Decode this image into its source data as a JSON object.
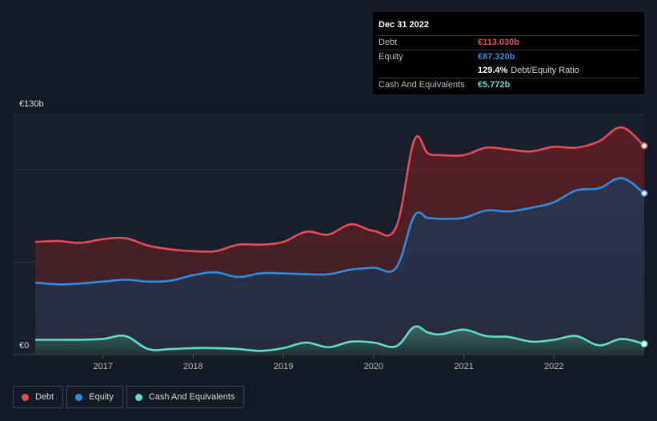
{
  "chart_data": {
    "type": "area",
    "x_unit": "year",
    "y_unit": "€ billions",
    "ylim": [
      0,
      130
    ],
    "y_tick_labels": [
      {
        "value": 130,
        "label": "€130b"
      },
      {
        "value": 0,
        "label": "€0"
      }
    ],
    "x_ticks": [
      2017,
      2018,
      2019,
      2020,
      2021,
      2022
    ],
    "grid": true,
    "legend_position": "bottom-left",
    "series": [
      {
        "name": "Debt",
        "color": "#e64c55",
        "points": [
          [
            2016.25,
            61
          ],
          [
            2016.5,
            61.5
          ],
          [
            2016.75,
            60.5
          ],
          [
            2017.0,
            62.5
          ],
          [
            2017.25,
            63
          ],
          [
            2017.5,
            59
          ],
          [
            2017.75,
            57
          ],
          [
            2018.0,
            56
          ],
          [
            2018.25,
            56
          ],
          [
            2018.5,
            59.5
          ],
          [
            2018.75,
            59.5
          ],
          [
            2019.0,
            61
          ],
          [
            2019.25,
            66.5
          ],
          [
            2019.5,
            65
          ],
          [
            2019.75,
            70.5
          ],
          [
            2020.0,
            67
          ],
          [
            2020.25,
            69
          ],
          [
            2020.45,
            116
          ],
          [
            2020.6,
            109
          ],
          [
            2020.75,
            108
          ],
          [
            2021.0,
            108
          ],
          [
            2021.25,
            112
          ],
          [
            2021.5,
            111
          ],
          [
            2021.75,
            110
          ],
          [
            2022.0,
            112.5
          ],
          [
            2022.25,
            112
          ],
          [
            2022.5,
            115.5
          ],
          [
            2022.75,
            123
          ],
          [
            2023.0,
            113.03
          ]
        ]
      },
      {
        "name": "Equity",
        "color": "#2e8de0",
        "points": [
          [
            2016.25,
            39
          ],
          [
            2016.5,
            38
          ],
          [
            2016.75,
            38.5
          ],
          [
            2017.0,
            39.5
          ],
          [
            2017.25,
            40.5
          ],
          [
            2017.5,
            39.5
          ],
          [
            2017.75,
            40
          ],
          [
            2018.0,
            43
          ],
          [
            2018.25,
            44.5
          ],
          [
            2018.5,
            42
          ],
          [
            2018.75,
            44
          ],
          [
            2019.0,
            44
          ],
          [
            2019.25,
            43.5
          ],
          [
            2019.5,
            43.5
          ],
          [
            2019.75,
            46
          ],
          [
            2020.0,
            47
          ],
          [
            2020.25,
            47
          ],
          [
            2020.45,
            75
          ],
          [
            2020.6,
            74
          ],
          [
            2020.75,
            73.5
          ],
          [
            2021.0,
            74
          ],
          [
            2021.25,
            78
          ],
          [
            2021.5,
            77.5
          ],
          [
            2021.75,
            79.5
          ],
          [
            2022.0,
            82.5
          ],
          [
            2022.25,
            89
          ],
          [
            2022.5,
            90
          ],
          [
            2022.75,
            95.5
          ],
          [
            2023.0,
            87.32
          ]
        ]
      },
      {
        "name": "Cash And Equivalents",
        "color": "#62dbc9",
        "points": [
          [
            2016.25,
            8
          ],
          [
            2016.5,
            8
          ],
          [
            2016.75,
            8
          ],
          [
            2017.0,
            8.5
          ],
          [
            2017.25,
            10
          ],
          [
            2017.5,
            3
          ],
          [
            2017.75,
            3
          ],
          [
            2018.0,
            3.5
          ],
          [
            2018.25,
            3.5
          ],
          [
            2018.5,
            3
          ],
          [
            2018.75,
            2
          ],
          [
            2019.0,
            3.5
          ],
          [
            2019.25,
            6.5
          ],
          [
            2019.5,
            4
          ],
          [
            2019.75,
            7
          ],
          [
            2020.0,
            6.5
          ],
          [
            2020.25,
            4.5
          ],
          [
            2020.45,
            15
          ],
          [
            2020.6,
            12
          ],
          [
            2020.75,
            11
          ],
          [
            2021.0,
            13.5
          ],
          [
            2021.25,
            10
          ],
          [
            2021.5,
            9.5
          ],
          [
            2021.75,
            7
          ],
          [
            2022.0,
            8
          ],
          [
            2022.25,
            10
          ],
          [
            2022.5,
            5
          ],
          [
            2022.75,
            8.5
          ],
          [
            2023.0,
            5.772
          ]
        ]
      }
    ]
  },
  "tooltip": {
    "date": "Dec 31 2022",
    "rows": [
      {
        "label": "Debt",
        "value": "€113.030b",
        "color": "#e64c55",
        "desc": ""
      },
      {
        "label": "Equity",
        "value": "€87.320b",
        "color": "#2e8de0",
        "desc": ""
      },
      {
        "label": "",
        "value": "129.4%",
        "color": "#ffffff",
        "desc": "Debt/Equity Ratio"
      },
      {
        "label": "Cash And Equivalents",
        "value": "€5.772b",
        "color": "#62dbc9",
        "desc": ""
      }
    ]
  },
  "legend": [
    {
      "label": "Debt",
      "color": "#e64c55"
    },
    {
      "label": "Equity",
      "color": "#2e8de0"
    },
    {
      "label": "Cash And Equivalents",
      "color": "#62dbc9"
    }
  ]
}
